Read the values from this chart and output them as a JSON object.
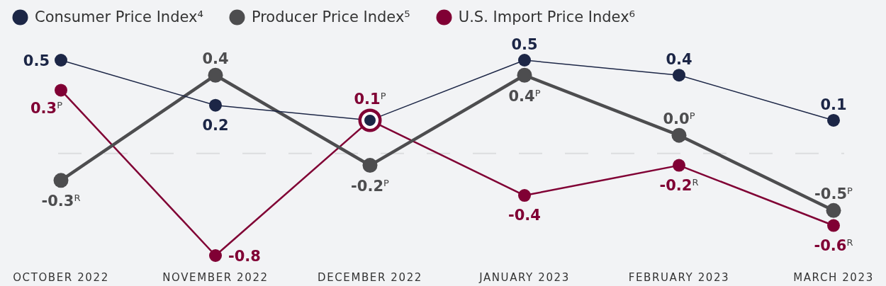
{
  "chart_data": {
    "type": "line",
    "categories": [
      "OCTOBER 2022",
      "NOVEMBER 2022",
      "DECEMBER 2022",
      "JANUARY 2023",
      "FEBRUARY 2023",
      "MARCH 2023"
    ],
    "series": [
      {
        "name": "Consumer Price Index⁴",
        "color": "#1c2646",
        "values": [
          0.5,
          0.2,
          0.1,
          0.5,
          0.4,
          0.1
        ],
        "value_labels": [
          "0.5",
          "0.2",
          null,
          "0.5",
          "0.4",
          "0.1"
        ]
      },
      {
        "name": "Producer Price Index⁵",
        "color": "#4d4d4f",
        "values": [
          -0.3,
          0.4,
          -0.2,
          0.4,
          0.0,
          -0.5
        ],
        "value_labels": [
          "-0.3$^{R}$",
          "0.4",
          "-0.2$^{P}$",
          "0.4$^{P}$",
          "0.0$^{P}$",
          "-0.5$^{P}$"
        ]
      },
      {
        "name": "U.S. Import Price Index⁶",
        "color": "#800034",
        "values": [
          0.3,
          -0.8,
          0.1,
          -0.4,
          -0.2,
          -0.6
        ],
        "value_labels": [
          "0.3$^{P}$",
          "-0.8",
          "0.1$^{P}$",
          "-0.4",
          "-0.2$^{R}$",
          "-0.6$^{R}$"
        ]
      }
    ],
    "legend": "top left",
    "marker": "circle",
    "ref_lines": [
      {
        "axis": "y",
        "value": -0.12,
        "color": "#dcdddf",
        "line_style": "dashed"
      }
    ]
  }
}
